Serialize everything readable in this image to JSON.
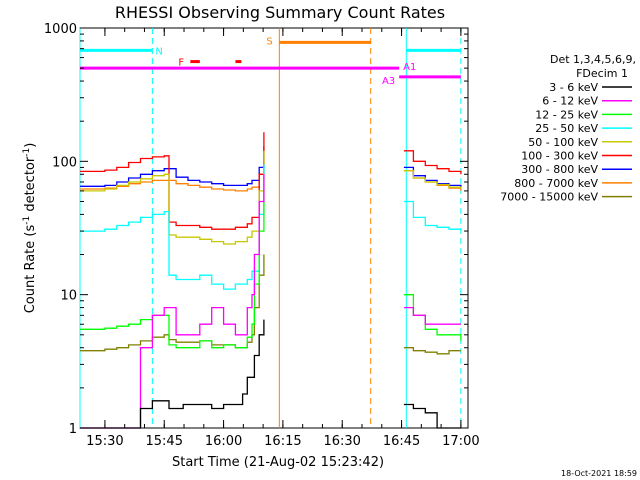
{
  "chart_data": {
    "type": "line",
    "title": "RHESSI Observing Summary Count Rates",
    "xlabel": "Start Time (21-Aug-02 15:23:42)",
    "ylabel_pre": "Count Rate (s",
    "ylabel_sup1": "-1",
    "ylabel_mid": " detector",
    "ylabel_sup2": "-1",
    "ylabel_post": ")",
    "yscale": "log",
    "ylim": [
      1,
      1000
    ],
    "xlim": [
      15.395,
      17.03
    ],
    "x_ticks": [
      {
        "v": 15.5,
        "label": "15:30"
      },
      {
        "v": 15.75,
        "label": "15:45"
      },
      {
        "v": 16.0,
        "label": "16:00"
      },
      {
        "v": 16.25,
        "label": "16:15"
      },
      {
        "v": 16.5,
        "label": "16:30"
      },
      {
        "v": 16.75,
        "label": "16:45"
      },
      {
        "v": 17.0,
        "label": "17:00"
      }
    ],
    "y_ticks": [
      {
        "v": 1,
        "label": "1"
      },
      {
        "v": 10,
        "label": "10"
      },
      {
        "v": 100,
        "label": "100"
      },
      {
        "v": 1000,
        "label": "1000"
      }
    ],
    "legend_header": [
      "Det 1,3,4,5,6,9,",
      "FDecim 1"
    ],
    "series": [
      {
        "name": "3 - 6 keV",
        "color": "#000000",
        "x": [
          15.39,
          15.5,
          15.55,
          15.6,
          15.65,
          15.7,
          15.75,
          15.77,
          15.83,
          15.88,
          15.95,
          16.0,
          16.05,
          16.08,
          16.1,
          16.13,
          16.15,
          16.17,
          16.73,
          16.76,
          16.8,
          16.85,
          16.9,
          16.95,
          17.0
        ],
        "y": [
          1,
          1,
          1,
          1,
          1.4,
          1.6,
          1.6,
          1.4,
          1.5,
          1.5,
          1.4,
          1.5,
          1.5,
          1.8,
          2.4,
          3.5,
          5,
          6.5,
          null,
          1.5,
          1.4,
          1.3,
          1,
          1,
          1
        ]
      },
      {
        "name": "6 - 12 keV",
        "color": "#ff00ff",
        "x": [
          15.39,
          15.5,
          15.55,
          15.6,
          15.65,
          15.7,
          15.75,
          15.77,
          15.8,
          15.85,
          15.9,
          15.95,
          16.0,
          16.05,
          16.1,
          16.12,
          16.13,
          16.15,
          16.17,
          16.73,
          16.76,
          16.8,
          16.85,
          16.9,
          16.95,
          17.0
        ],
        "y": [
          1,
          1,
          1,
          1,
          4,
          7,
          8,
          8,
          5,
          5,
          6,
          8,
          6,
          5,
          8,
          10,
          20,
          50,
          80,
          null,
          8,
          7,
          6,
          6,
          6,
          6
        ]
      },
      {
        "name": "12 - 25 keV",
        "color": "#00ff00",
        "x": [
          15.39,
          15.5,
          15.55,
          15.6,
          15.65,
          15.7,
          15.75,
          15.77,
          15.8,
          15.85,
          15.9,
          15.95,
          16.0,
          16.05,
          16.1,
          16.12,
          16.13,
          16.15,
          16.17,
          16.73,
          16.76,
          16.8,
          16.85,
          16.9,
          16.95,
          17.0
        ],
        "y": [
          5.5,
          5.6,
          5.8,
          6.0,
          6.5,
          7.0,
          7.0,
          4.2,
          4.0,
          4.0,
          4.5,
          4.0,
          4.2,
          4.0,
          4.8,
          6,
          12,
          30,
          60,
          null,
          10,
          7,
          5.5,
          5,
          5,
          4.5
        ]
      },
      {
        "name": "25 - 50 keV",
        "color": "#00ffff",
        "x": [
          15.39,
          15.5,
          15.55,
          15.6,
          15.65,
          15.7,
          15.75,
          15.77,
          15.8,
          15.85,
          15.9,
          15.95,
          16.0,
          16.05,
          16.1,
          16.12,
          16.15,
          16.17,
          16.73,
          16.76,
          16.8,
          16.85,
          16.9,
          16.95,
          17.0
        ],
        "y": [
          30,
          31,
          33,
          35,
          38,
          40,
          42,
          14,
          13,
          13,
          14,
          12,
          11,
          12,
          13,
          15,
          40,
          95,
          null,
          50,
          38,
          33,
          32,
          31,
          30
        ]
      },
      {
        "name": "50 - 100 keV",
        "color": "#c8c800",
        "x": [
          15.39,
          15.5,
          15.55,
          15.6,
          15.65,
          15.7,
          15.75,
          15.77,
          15.8,
          15.85,
          15.9,
          15.95,
          16.0,
          16.05,
          16.1,
          16.12,
          16.15,
          16.17,
          16.73,
          16.76,
          16.8,
          16.85,
          16.9,
          16.95,
          17.0
        ],
        "y": [
          60,
          62,
          66,
          70,
          74,
          78,
          80,
          28,
          27,
          27,
          26,
          25,
          24,
          25,
          27,
          30,
          60,
          120,
          null,
          85,
          75,
          70,
          67,
          64,
          62
        ]
      },
      {
        "name": "100 - 300 keV",
        "color": "#ff0000",
        "x": [
          15.39,
          15.5,
          15.55,
          15.6,
          15.65,
          15.7,
          15.75,
          15.77,
          15.8,
          15.85,
          15.9,
          15.95,
          16.0,
          16.05,
          16.1,
          16.12,
          16.15,
          16.17,
          16.73,
          16.76,
          16.8,
          16.85,
          16.9,
          16.95,
          17.0
        ],
        "y": [
          84,
          86,
          90,
          98,
          105,
          108,
          110,
          35,
          33,
          33,
          32,
          31,
          31,
          32,
          34,
          38,
          80,
          165,
          null,
          120,
          100,
          93,
          88,
          84,
          80
        ]
      },
      {
        "name": "300 - 800 keV",
        "color": "#0000ff",
        "x": [
          15.39,
          15.5,
          15.55,
          15.6,
          15.65,
          15.7,
          15.75,
          15.77,
          15.8,
          15.85,
          15.9,
          15.95,
          16.0,
          16.05,
          16.1,
          16.12,
          16.15,
          16.17,
          16.73,
          16.76,
          16.8,
          16.85,
          16.9,
          16.95,
          17.0
        ],
        "y": [
          65,
          66,
          70,
          75,
          80,
          85,
          88,
          88,
          76,
          72,
          70,
          68,
          66,
          66,
          68,
          72,
          90,
          130,
          null,
          90,
          78,
          72,
          68,
          66,
          64
        ]
      },
      {
        "name": "800 - 7000 keV",
        "color": "#ff8000",
        "x": [
          15.39,
          15.5,
          15.55,
          15.6,
          15.65,
          15.7,
          15.75,
          15.77,
          15.8,
          15.85,
          15.9,
          15.95,
          16.0,
          16.05,
          16.1,
          16.12,
          16.15,
          16.17,
          16.73,
          16.76,
          16.8,
          16.85,
          16.9,
          16.95,
          17.0
        ],
        "y": [
          62,
          63,
          65,
          68,
          70,
          72,
          72,
          72,
          68,
          66,
          64,
          62,
          61,
          60,
          62,
          64,
          80,
          110,
          null,
          85,
          75,
          70,
          66,
          63,
          60
        ]
      },
      {
        "name": "7000 - 15000 keV",
        "color": "#808000",
        "x": [
          15.39,
          15.5,
          15.55,
          15.6,
          15.65,
          15.7,
          15.75,
          15.77,
          15.8,
          15.85,
          15.9,
          15.95,
          16.0,
          16.05,
          16.1,
          16.12,
          16.13,
          16.15,
          16.17,
          16.73,
          16.76,
          16.8,
          16.85,
          16.9,
          16.95,
          17.0
        ],
        "y": [
          3.8,
          3.9,
          4.0,
          4.2,
          4.5,
          4.8,
          5.0,
          4.6,
          4.4,
          4.4,
          4.5,
          4.2,
          4.2,
          4.0,
          4.4,
          5,
          8,
          14,
          20,
          null,
          4,
          3.8,
          3.7,
          3.6,
          3.8,
          3.8
        ]
      }
    ],
    "annotations": {
      "N": {
        "label": "N",
        "color": "#00ffff",
        "segments": [
          [
            15.395,
            15.7
          ],
          [
            16.77,
            17.0
          ]
        ],
        "level": 680,
        "vlines": [
          15.395,
          15.7,
          16.77,
          17.0
        ],
        "vlines_dashed": [
          false,
          true,
          false,
          true
        ]
      },
      "F": {
        "label": "F",
        "color": "#ff0000",
        "segments": [
          [
            15.86,
            15.9
          ],
          [
            16.05,
            16.075
          ]
        ],
        "level": 560
      },
      "S": {
        "label": "S",
        "color": "#ff8000",
        "segments": [
          [
            16.235,
            16.62
          ]
        ],
        "level": 780,
        "vlines": [
          16.235,
          16.62
        ],
        "vlines_dashed": [
          false,
          true
        ]
      },
      "A1": {
        "label": "A1",
        "color": "#ff00ff",
        "segments": [
          [
            15.395,
            16.74
          ]
        ],
        "level": 500
      },
      "A3": {
        "label": "A3",
        "color": "#ff00ff",
        "segments": [
          [
            16.74,
            17.0
          ]
        ],
        "level": 430
      }
    }
  },
  "footer_date": "18-Oct-2021 18:59"
}
